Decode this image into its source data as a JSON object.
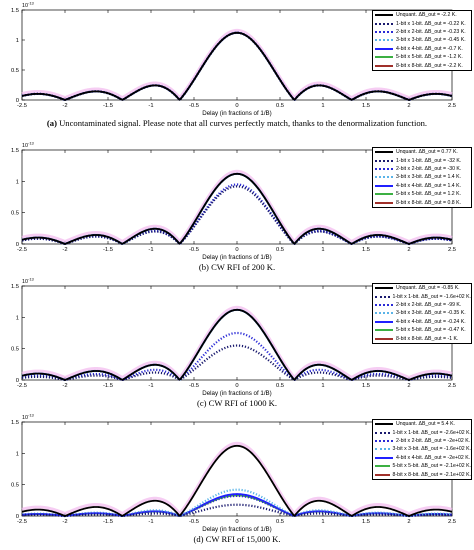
{
  "figure": {
    "panels": [
      {
        "caption_letter": "(a)",
        "caption_text": "Uncontaminated signal. Please note that all curves perfectly match, thanks to the denormalization function.",
        "exponent_label": "10",
        "exponent_power": "-13"
      },
      {
        "caption_letter": "(b)",
        "caption_text": "CW RFI of 200 K.",
        "exponent_label": "10",
        "exponent_power": "-13"
      },
      {
        "caption_letter": "(c)",
        "caption_text": "CW RFI of 1000 K.",
        "exponent_label": "10",
        "exponent_power": "-13"
      },
      {
        "caption_letter": "(d)",
        "caption_text": "CW RFI of 15,000 K.",
        "exponent_label": "10",
        "exponent_power": "-13"
      }
    ]
  },
  "chart_data": [
    {
      "type": "line",
      "xlabel": "Delay (in fractions of 1/B)",
      "ylabel": "",
      "xlim": [
        -2.5,
        2.5
      ],
      "ylim": [
        0,
        1.5
      ],
      "xticks": [
        "-2.5",
        "-2",
        "-1.5",
        "-1",
        "-0.5",
        "0",
        "0.5",
        "1",
        "1.5",
        "2",
        "2.5"
      ],
      "yticks": [
        "0",
        "0.5",
        "1",
        "1.5"
      ],
      "y_scale_label": "x 10^-13",
      "grid": false,
      "legend_position": "top-right",
      "series": [
        {
          "name": "Unquant. ΔB_out = -2.2 K.",
          "style": "solid",
          "color": "#000000",
          "peak": 1.12
        },
        {
          "name": "1-bit x 1-bit. ΔB_out = -0.22 K.",
          "style": "dotted",
          "color": "#1a1a6e",
          "peak": 1.12
        },
        {
          "name": "2-bit x 2-bit. ΔB_out = -0.23 K.",
          "style": "dotted",
          "color": "#2b2bd6",
          "peak": 1.12
        },
        {
          "name": "3-bit x 3-bit. ΔB_out = -0.45 K.",
          "style": "dotted",
          "color": "#5ab4e8",
          "peak": 1.12
        },
        {
          "name": "4-bit x 4-bit. ΔB_out = -0.7 K.",
          "style": "solid",
          "color": "#2020ff",
          "peak": 1.12
        },
        {
          "name": "5-bit x 5-bit. ΔB_out = -1.2 K.",
          "style": "solid",
          "color": "#3cb043",
          "peak": 1.12
        },
        {
          "name": "8-bit x 8-bit. ΔB_out = -2.2 K.",
          "style": "solid",
          "color": "#a0302a",
          "peak": 1.12
        }
      ]
    },
    {
      "type": "line",
      "xlabel": "Delay (in fractions of 1/B)",
      "ylabel": "",
      "xlim": [
        -2.5,
        2.5
      ],
      "ylim": [
        0,
        1.5
      ],
      "xticks": [
        "-2.5",
        "-2",
        "-1.5",
        "-1",
        "-0.5",
        "0",
        "0.5",
        "1",
        "1.5",
        "2",
        "2.5"
      ],
      "yticks": [
        "0",
        "0.5",
        "1",
        "1.5"
      ],
      "y_scale_label": "x 10^-13",
      "grid": false,
      "legend_position": "top-right",
      "series": [
        {
          "name": "Unquant. ΔB_out = 0.77 K.",
          "style": "solid",
          "color": "#000000",
          "peak": 1.12
        },
        {
          "name": "1-bit x 1-bit. ΔB_out = -32 K.",
          "style": "dotted",
          "color": "#1a1a6e",
          "peak": 0.92
        },
        {
          "name": "2-bit x 2-bit. ΔB_out = -30 K.",
          "style": "dotted",
          "color": "#2b2bd6",
          "peak": 0.95
        },
        {
          "name": "3-bit x 3-bit. ΔB_out = 1.4 K.",
          "style": "dotted",
          "color": "#5ab4e8",
          "peak": 1.12
        },
        {
          "name": "4-bit x 4-bit. ΔB_out = 1.4 K.",
          "style": "solid",
          "color": "#2020ff",
          "peak": 1.12
        },
        {
          "name": "5-bit x 5-bit. ΔB_out = 1.2 K.",
          "style": "solid",
          "color": "#3cb043",
          "peak": 1.12
        },
        {
          "name": "8-bit x 8-bit. ΔB_out = 0.8 K.",
          "style": "solid",
          "color": "#a0302a",
          "peak": 1.12
        }
      ]
    },
    {
      "type": "line",
      "xlabel": "Delay (in fractions of 1/B)",
      "ylabel": "",
      "xlim": [
        -2.5,
        2.5
      ],
      "ylim": [
        0,
        1.5
      ],
      "xticks": [
        "-2.5",
        "-2",
        "-1.5",
        "-1",
        "-0.5",
        "0",
        "0.5",
        "1",
        "1.5",
        "2",
        "2.5"
      ],
      "yticks": [
        "0",
        "0.5",
        "1",
        "1.5"
      ],
      "y_scale_label": "x 10^-13",
      "grid": false,
      "legend_position": "top-right",
      "series": [
        {
          "name": "Unquant. ΔB_out = -0.85 K.",
          "style": "solid",
          "color": "#000000",
          "peak": 1.12
        },
        {
          "name": "1-bit x 1-bit. ΔB_out = -1.6e+02 K.",
          "style": "dotted",
          "color": "#1a1a6e",
          "peak": 0.55
        },
        {
          "name": "2-bit x 2-bit. ΔB_out = -99 K.",
          "style": "dotted",
          "color": "#2b2bd6",
          "peak": 0.75
        },
        {
          "name": "3-bit x 3-bit. ΔB_out = -0.35 K.",
          "style": "dotted",
          "color": "#5ab4e8",
          "peak": 1.12
        },
        {
          "name": "4-bit x 4-bit. ΔB_out = -0.24 K.",
          "style": "solid",
          "color": "#2020ff",
          "peak": 1.12
        },
        {
          "name": "5-bit x 5-bit. ΔB_out = -0.47 K.",
          "style": "solid",
          "color": "#3cb043",
          "peak": 1.12
        },
        {
          "name": "8-bit x 8-bit. ΔB_out = -1 K.",
          "style": "solid",
          "color": "#a0302a",
          "peak": 1.12
        }
      ]
    },
    {
      "type": "line",
      "xlabel": "Delay (in fractions of 1/B)",
      "ylabel": "",
      "xlim": [
        -2.5,
        2.5
      ],
      "ylim": [
        0,
        1.5
      ],
      "xticks": [
        "-2.5",
        "-2",
        "-1.5",
        "-1",
        "-0.5",
        "0",
        "0.5",
        "1",
        "1.5",
        "2",
        "2.5"
      ],
      "yticks": [
        "0",
        "0.5",
        "1",
        "1.5"
      ],
      "y_scale_label": "x 10^-13",
      "grid": false,
      "legend_position": "top-right",
      "series": [
        {
          "name": "Unquant. ΔB_out = 5.4 K.",
          "style": "solid",
          "color": "#000000",
          "peak": 1.12
        },
        {
          "name": "1-bit x 1-bit. ΔB_out = -2.6e+02 K.",
          "style": "dotted",
          "color": "#1a1a6e",
          "peak": 0.18
        },
        {
          "name": "2-bit x 2-bit. ΔB_out = -2e+02 K.",
          "style": "dotted",
          "color": "#2b2bd6",
          "peak": 0.32
        },
        {
          "name": "3-bit x 3-bit. ΔB_out = -1.6e+02 K.",
          "style": "dotted",
          "color": "#5ab4e8",
          "peak": 0.42
        },
        {
          "name": "4-bit x 4-bit. ΔB_out = -2e+02 K.",
          "style": "solid",
          "color": "#2020ff",
          "peak": 0.35
        },
        {
          "name": "5-bit x 5-bit. ΔB_out = -2.1e+02 K.",
          "style": "solid",
          "color": "#3cb043",
          "peak": 0.33
        },
        {
          "name": "8-bit x 8-bit. ΔB_out = -2.1e+02 K.",
          "style": "solid",
          "color": "#a0302a",
          "peak": 0.33
        }
      ]
    }
  ]
}
